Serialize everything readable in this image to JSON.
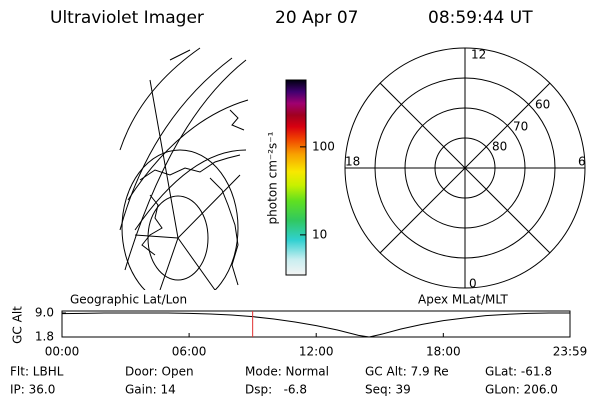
{
  "header": {
    "title": "Ultraviolet Imager",
    "date": "20 Apr 07",
    "time": "08:59:44 UT"
  },
  "left_panel": {
    "label": "Geographic Lat/Lon"
  },
  "right_panel": {
    "label": "Apex MLat/MLT",
    "mlt_labels": [
      "12",
      "18",
      "6",
      "0"
    ],
    "mlat_labels": [
      "60",
      "70",
      "80"
    ]
  },
  "colorbar": {
    "label": "photon cm⁻²s⁻¹",
    "log": true,
    "ylim": [
      3.5,
      575
    ],
    "yticks": [
      10,
      100
    ]
  },
  "chart_data": {
    "type": "line",
    "ylabel": "GC Alt",
    "x": [
      0,
      1,
      2,
      3,
      4,
      5,
      6,
      7,
      8,
      9,
      10,
      11,
      12,
      13,
      14,
      14.5,
      15,
      16,
      17,
      18,
      19,
      20,
      21,
      22,
      23,
      24
    ],
    "series": [
      {
        "name": "GC Alt",
        "color": "#000000",
        "values": [
          8.8,
          8.9,
          9.0,
          9.0,
          9.0,
          9.0,
          8.9,
          8.7,
          8.4,
          7.9,
          7.2,
          6.3,
          5.2,
          3.9,
          2.3,
          1.8,
          2.5,
          4.2,
          5.6,
          6.7,
          7.5,
          8.2,
          8.6,
          8.9,
          9.0,
          9.0
        ]
      }
    ],
    "marker_x": 9.0,
    "marker_color": "#e03030",
    "xlim": [
      0,
      23.98
    ],
    "xticks": [
      {
        "value": 0,
        "label": "00:00"
      },
      {
        "value": 6,
        "label": "06:00"
      },
      {
        "value": 12,
        "label": "12:00"
      },
      {
        "value": 18,
        "label": "18:00"
      },
      {
        "value": 23.98,
        "label": "23:59"
      }
    ],
    "ylim": [
      1.8,
      9.0
    ],
    "yticks": [
      {
        "value": 1.8,
        "label": "1.8"
      },
      {
        "value": 9.0,
        "label": "9.0"
      }
    ]
  },
  "status": [
    [
      "Flt: LBHL",
      "Door: Open",
      "Mode: Normal",
      "GC Alt: 7.9 Re",
      "GLat: -61.8"
    ],
    [
      "IP: 36.0",
      "Gain: 14",
      "Dsp:   -6.8",
      "Seq: 39",
      "GLon: 206.0"
    ]
  ]
}
